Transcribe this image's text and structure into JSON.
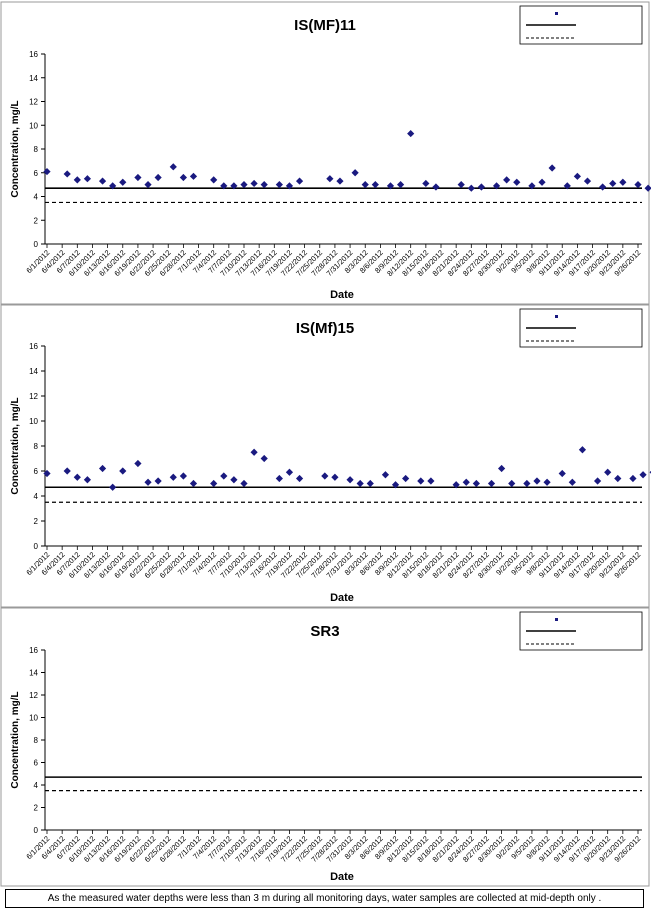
{
  "dates": [
    "6/1/2012",
    "6/4/2012",
    "6/7/2012",
    "6/10/2012",
    "6/13/2012",
    "6/16/2012",
    "6/19/2012",
    "6/22/2012",
    "6/25/2012",
    "6/28/2012",
    "7/1/2012",
    "7/4/2012",
    "7/7/2012",
    "7/10/2012",
    "7/13/2012",
    "7/16/2012",
    "7/19/2012",
    "7/22/2012",
    "7/25/2012",
    "7/28/2012",
    "7/31/2012",
    "8/3/2012",
    "8/6/2012",
    "8/9/2012",
    "8/12/2012",
    "8/15/2012",
    "8/18/2012",
    "8/21/2012",
    "8/24/2012",
    "8/27/2012",
    "8/30/2012",
    "9/2/2012",
    "9/5/2012",
    "9/8/2012",
    "9/11/2012",
    "9/14/2012",
    "9/17/2012",
    "9/20/2012",
    "9/23/2012",
    "9/26/2012"
  ],
  "colors": {
    "marker": "#1a1a80",
    "line": "#000000",
    "border": "#9a9a9a"
  },
  "chart_data": [
    {
      "type": "scatter",
      "title": "IS(MF)11",
      "xlabel": "Date",
      "ylabel": "Concentration, mg/L",
      "ylim": [
        0,
        16
      ],
      "yticks": [
        0,
        2,
        4,
        6,
        8,
        10,
        12,
        14,
        16
      ],
      "grid": false,
      "legend_placement": "top-right",
      "series": [
        {
          "name": "",
          "kind": "marker",
          "points": [
            [
              "6/1/2012",
              6.1
            ],
            [
              "6/5/2012",
              5.9
            ],
            [
              "6/7/2012",
              5.4
            ],
            [
              "6/9/2012",
              5.5
            ],
            [
              "6/12/2012",
              5.3
            ],
            [
              "6/14/2012",
              4.9
            ],
            [
              "6/16/2012",
              5.2
            ],
            [
              "6/19/2012",
              5.6
            ],
            [
              "6/21/2012",
              5.0
            ],
            [
              "6/23/2012",
              5.6
            ],
            [
              "6/26/2012",
              6.5
            ],
            [
              "6/28/2012",
              5.6
            ],
            [
              "6/30/2012",
              5.7
            ],
            [
              "7/4/2012",
              5.4
            ],
            [
              "7/6/2012",
              4.9
            ],
            [
              "7/8/2012",
              4.9
            ],
            [
              "7/10/2012",
              5.0
            ],
            [
              "7/12/2012",
              5.1
            ],
            [
              "7/14/2012",
              5.0
            ],
            [
              "7/17/2012",
              5.0
            ],
            [
              "7/19/2012",
              4.9
            ],
            [
              "7/21/2012",
              5.3
            ],
            [
              "7/27/2012",
              5.5
            ],
            [
              "7/29/2012",
              5.3
            ],
            [
              "8/1/2012",
              6.0
            ],
            [
              "8/3/2012",
              5.0
            ],
            [
              "8/5/2012",
              5.0
            ],
            [
              "8/8/2012",
              4.9
            ],
            [
              "8/10/2012",
              5.0
            ],
            [
              "8/12/2012",
              9.3
            ],
            [
              "8/15/2012",
              5.1
            ],
            [
              "8/17/2012",
              4.8
            ],
            [
              "8/22/2012",
              5.0
            ],
            [
              "8/24/2012",
              4.7
            ],
            [
              "8/26/2012",
              4.8
            ],
            [
              "8/29/2012",
              4.9
            ],
            [
              "8/31/2012",
              5.4
            ],
            [
              "9/2/2012",
              5.2
            ],
            [
              "9/5/2012",
              4.9
            ],
            [
              "9/7/2012",
              5.2
            ],
            [
              "9/9/2012",
              6.4
            ],
            [
              "9/12/2012",
              4.9
            ],
            [
              "9/14/2012",
              5.7
            ],
            [
              "9/16/2012",
              5.3
            ],
            [
              "9/19/2012",
              4.8
            ],
            [
              "9/21/2012",
              5.1
            ],
            [
              "9/23/2012",
              5.2
            ],
            [
              "9/26/2012",
              5.0
            ],
            [
              "9/28/2012",
              4.7
            ],
            [
              "9/30/2012",
              4.9
            ]
          ]
        },
        {
          "name": "",
          "kind": "solid",
          "y": 4.7
        },
        {
          "name": "",
          "kind": "dashed",
          "y": 3.5
        }
      ]
    },
    {
      "type": "scatter",
      "title": "IS(Mf)15",
      "xlabel": "Date",
      "ylabel": "Concentration, mg/L",
      "ylim": [
        0,
        16
      ],
      "yticks": [
        0,
        2,
        4,
        6,
        8,
        10,
        12,
        14,
        16
      ],
      "grid": false,
      "legend_placement": "top-right",
      "series": [
        {
          "name": "",
          "kind": "marker",
          "points": [
            [
              "6/1/2012",
              5.8
            ],
            [
              "6/5/2012",
              6.0
            ],
            [
              "6/7/2012",
              5.5
            ],
            [
              "6/9/2012",
              5.3
            ],
            [
              "6/12/2012",
              6.2
            ],
            [
              "6/14/2012",
              4.7
            ],
            [
              "6/16/2012",
              6.0
            ],
            [
              "6/19/2012",
              6.6
            ],
            [
              "6/21/2012",
              5.1
            ],
            [
              "6/23/2012",
              5.2
            ],
            [
              "6/26/2012",
              5.5
            ],
            [
              "6/28/2012",
              5.6
            ],
            [
              "6/30/2012",
              5.0
            ],
            [
              "7/4/2012",
              5.0
            ],
            [
              "7/6/2012",
              5.6
            ],
            [
              "7/8/2012",
              5.3
            ],
            [
              "7/10/2012",
              5.0
            ],
            [
              "7/12/2012",
              7.5
            ],
            [
              "7/14/2012",
              7.0
            ],
            [
              "7/17/2012",
              5.4
            ],
            [
              "7/19/2012",
              5.9
            ],
            [
              "7/21/2012",
              5.4
            ],
            [
              "7/26/2012",
              5.6
            ],
            [
              "7/28/2012",
              5.5
            ],
            [
              "7/31/2012",
              5.3
            ],
            [
              "8/2/2012",
              5.0
            ],
            [
              "8/4/2012",
              5.0
            ],
            [
              "8/7/2012",
              5.7
            ],
            [
              "8/9/2012",
              4.9
            ],
            [
              "8/11/2012",
              5.4
            ],
            [
              "8/14/2012",
              5.2
            ],
            [
              "8/16/2012",
              5.2
            ],
            [
              "8/21/2012",
              4.9
            ],
            [
              "8/23/2012",
              5.1
            ],
            [
              "8/25/2012",
              5.0
            ],
            [
              "8/28/2012",
              5.0
            ],
            [
              "8/30/2012",
              6.2
            ],
            [
              "9/1/2012",
              5.0
            ],
            [
              "9/4/2012",
              5.0
            ],
            [
              "9/6/2012",
              5.2
            ],
            [
              "9/8/2012",
              5.1
            ],
            [
              "9/11/2012",
              5.8
            ],
            [
              "9/13/2012",
              5.1
            ],
            [
              "9/15/2012",
              7.7
            ],
            [
              "9/18/2012",
              5.2
            ],
            [
              "9/20/2012",
              5.9
            ],
            [
              "9/22/2012",
              5.4
            ],
            [
              "9/25/2012",
              5.4
            ],
            [
              "9/27/2012",
              5.7
            ],
            [
              "9/29/2012",
              5.9
            ]
          ]
        },
        {
          "name": "",
          "kind": "solid",
          "y": 4.7
        },
        {
          "name": "",
          "kind": "dashed",
          "y": 3.5
        }
      ]
    },
    {
      "type": "scatter",
      "title": "SR3",
      "xlabel": "Date",
      "ylabel": "Concentration, mg/L",
      "ylim": [
        0,
        16
      ],
      "yticks": [
        0,
        2,
        4,
        6,
        8,
        10,
        12,
        14,
        16
      ],
      "grid": false,
      "legend_placement": "top-right",
      "series": [
        {
          "name": "",
          "kind": "marker",
          "points": []
        },
        {
          "name": "",
          "kind": "solid",
          "y": 4.7
        },
        {
          "name": "",
          "kind": "dashed",
          "y": 3.5
        }
      ]
    }
  ],
  "footnote": "As the measured water depths were less than 3 m during all monitoring days, water samples are collected  at mid-depth only ."
}
